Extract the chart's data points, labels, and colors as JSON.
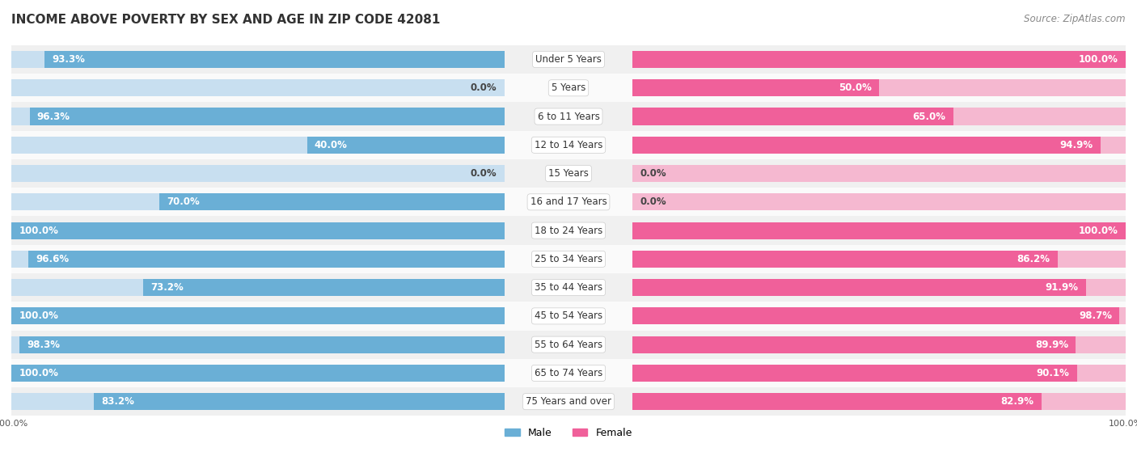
{
  "title": "INCOME ABOVE POVERTY BY SEX AND AGE IN ZIP CODE 42081",
  "source": "Source: ZipAtlas.com",
  "categories": [
    "Under 5 Years",
    "5 Years",
    "6 to 11 Years",
    "12 to 14 Years",
    "15 Years",
    "16 and 17 Years",
    "18 to 24 Years",
    "25 to 34 Years",
    "35 to 44 Years",
    "45 to 54 Years",
    "55 to 64 Years",
    "65 to 74 Years",
    "75 Years and over"
  ],
  "male_values": [
    93.3,
    0.0,
    96.3,
    40.0,
    0.0,
    70.0,
    100.0,
    96.6,
    73.2,
    100.0,
    98.3,
    100.0,
    83.2
  ],
  "female_values": [
    100.0,
    50.0,
    65.0,
    94.9,
    0.0,
    0.0,
    100.0,
    86.2,
    91.9,
    98.7,
    89.9,
    90.1,
    82.9
  ],
  "male_color": "#6aafd6",
  "male_bg_color": "#c8dff0",
  "female_color": "#f0609a",
  "female_bg_color": "#f5b8d0",
  "row_bg_even": "#f0f0f0",
  "row_bg_odd": "#fafafa",
  "label_bg": "#ffffff",
  "bar_height": 0.6,
  "xlim": [
    0,
    100
  ],
  "title_fontsize": 11,
  "label_fontsize": 8.5,
  "cat_fontsize": 8.5,
  "tick_fontsize": 8,
  "source_fontsize": 8.5
}
